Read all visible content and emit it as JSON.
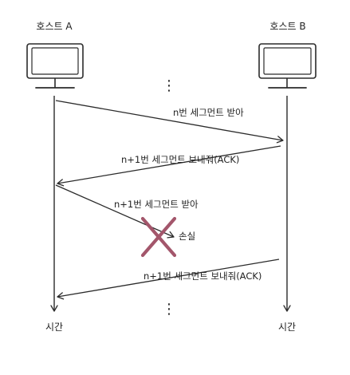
{
  "hosts": {
    "a_label": "호스트 A",
    "b_label": "호스트 B"
  },
  "messages": {
    "m1": "n번 세그먼트 받아",
    "m2": "n+1번 세그먼트 보내줘(ACK)",
    "m3": "n+1번 세그먼트 받아",
    "m4": "n+1번 세그먼트 보내줘(ACK)"
  },
  "loss_label": "손실",
  "time_label_a": "시간",
  "time_label_b": "시간",
  "ellipsis": "⋮",
  "colors": {
    "line": "#2b2b2b",
    "loss_mark": "#a3566b",
    "background": "#ffffff"
  }
}
